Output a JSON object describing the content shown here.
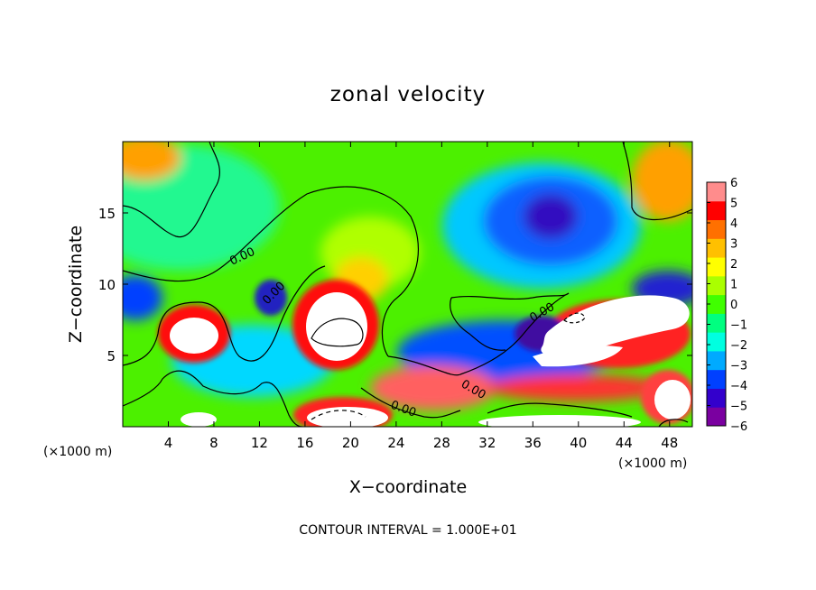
{
  "chart_data": {
    "type": "heatmap",
    "title": "zonal velocity",
    "xlabel": "X−coordinate",
    "ylabel": "Z−coordinate",
    "x_unit_left": "(×1000 m)",
    "x_unit_right": "(×1000 m)",
    "xlim": [
      0,
      50
    ],
    "ylim": [
      0,
      20
    ],
    "x_ticks": [
      4,
      8,
      12,
      16,
      20,
      24,
      28,
      32,
      36,
      40,
      44,
      48
    ],
    "x_tick_labels": [
      "4",
      "8",
      "12",
      "16",
      "20",
      "24",
      "28",
      "32",
      "36",
      "40",
      "44",
      "48"
    ],
    "y_ticks": [
      5,
      10,
      15
    ],
    "y_tick_labels": [
      "5",
      "10",
      "15"
    ],
    "colorbar": {
      "range": [
        -6,
        6
      ],
      "ticks": [
        6,
        5,
        4,
        3,
        2,
        1,
        0,
        -1,
        -2,
        -3,
        -4,
        -5,
        -6
      ],
      "tick_labels": [
        "6",
        "5",
        "4",
        "3",
        "2",
        "1",
        "0",
        "−1",
        "−2",
        "−3",
        "−4",
        "−5",
        "−6"
      ],
      "colors": [
        "#7a00a0",
        "#3300cc",
        "#0040ff",
        "#00aaff",
        "#00ffe0",
        "#00ff80",
        "#40ff00",
        "#aaff00",
        "#ffff00",
        "#ffc000",
        "#ff7000",
        "#ff0000",
        "#ff8c8c"
      ]
    },
    "contour_labels": [
      "0.00",
      "0.00",
      "0.00",
      "0.00",
      "0.00"
    ],
    "footer": "CONTOUR INTERVAL = 1.000E+01"
  }
}
